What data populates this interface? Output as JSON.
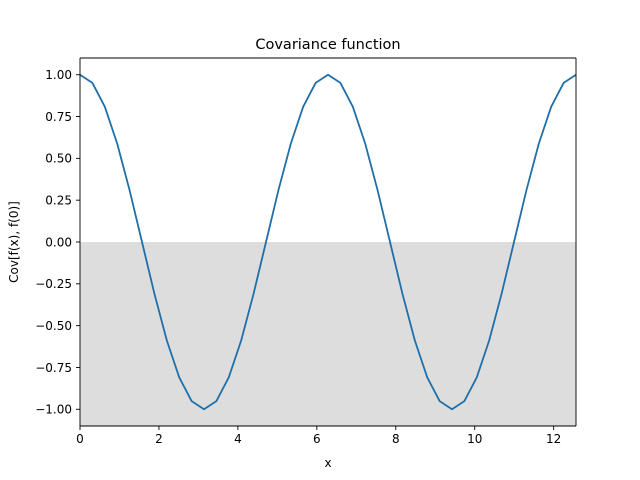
{
  "chart_data": {
    "type": "line",
    "title": "Covariance function",
    "xlabel": "x",
    "ylabel": "Cov[f(x), f(0)]",
    "xlim": [
      0,
      12.566
    ],
    "ylim": [
      -1.1,
      1.1
    ],
    "xticks": [
      0,
      2,
      4,
      6,
      8,
      10,
      12
    ],
    "xtick_labels": [
      "0",
      "2",
      "4",
      "6",
      "8",
      "10",
      "12"
    ],
    "yticks": [
      1.0,
      0.75,
      0.5,
      0.25,
      0.0,
      -0.25,
      -0.5,
      -0.75,
      -1.0
    ],
    "ytick_labels": [
      "1.00",
      "0.75",
      "0.50",
      "0.25",
      "0.00",
      "−0.25",
      "−0.50",
      "−0.75",
      "−1.00"
    ],
    "grid": false,
    "shaded_region": {
      "y_from": -1.1,
      "y_to": 0.0,
      "color": "#dddddd"
    },
    "series": [
      {
        "color": "#1f6fa8",
        "x": [
          0.0,
          0.3142,
          0.6283,
          0.9425,
          1.2566,
          1.5708,
          1.885,
          2.1991,
          2.5133,
          2.8274,
          3.1416,
          3.4558,
          3.7699,
          4.0841,
          4.3982,
          4.7124,
          5.0265,
          5.3407,
          5.6549,
          5.969,
          6.2832,
          6.5973,
          6.9115,
          7.2257,
          7.5398,
          7.854,
          8.1681,
          8.4823,
          8.7965,
          9.1106,
          9.4248,
          9.7389,
          10.0531,
          10.3673,
          10.6814,
          10.9956,
          11.3097,
          11.6239,
          11.9381,
          12.2522,
          12.5664
        ],
        "y": [
          1.0,
          0.951,
          0.809,
          0.588,
          0.309,
          0.0,
          -0.309,
          -0.588,
          -0.809,
          -0.951,
          -1.0,
          -0.951,
          -0.809,
          -0.588,
          -0.309,
          0.0,
          0.309,
          0.588,
          0.809,
          0.951,
          1.0,
          0.951,
          0.809,
          0.588,
          0.309,
          0.0,
          -0.309,
          -0.588,
          -0.809,
          -0.951,
          -1.0,
          -0.951,
          -0.809,
          -0.588,
          -0.309,
          0.0,
          0.309,
          0.588,
          0.809,
          0.951,
          1.0
        ]
      }
    ]
  }
}
